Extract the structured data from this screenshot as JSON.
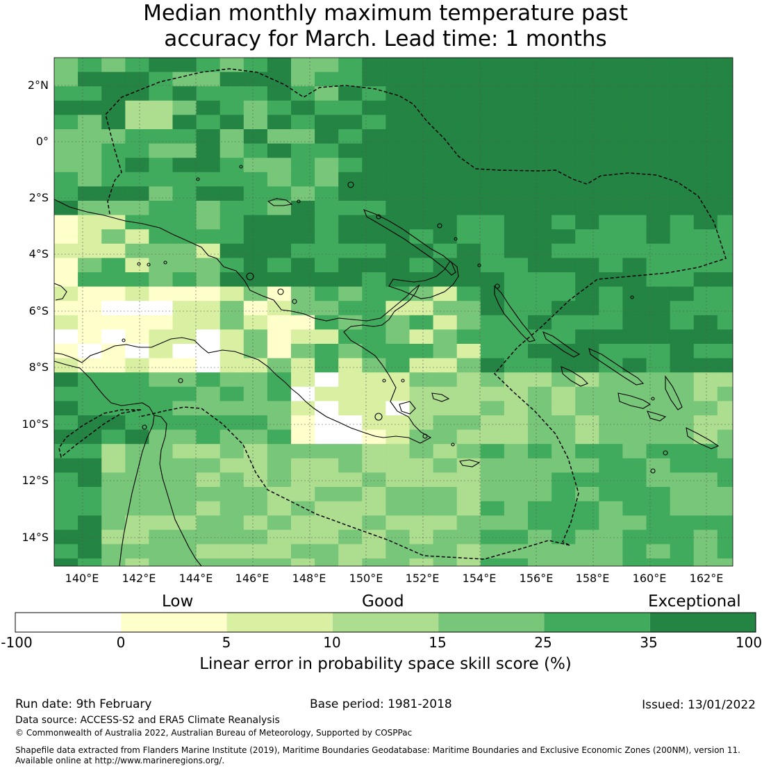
{
  "title": {
    "line1": "Median monthly maximum temperature past",
    "line2": "accuracy for March. Lead time: 1 months"
  },
  "map": {
    "lat_ticks": [
      "2°N",
      "0°",
      "2°S",
      "4°S",
      "6°S",
      "8°S",
      "10°S",
      "12°S",
      "14°S"
    ],
    "lon_ticks": [
      "140°E",
      "142°E",
      "144°E",
      "146°E",
      "148°E",
      "150°E",
      "152°E",
      "154°E",
      "156°E",
      "158°E",
      "160°E",
      "162°E"
    ],
    "extent": {
      "lon_min": 139,
      "lon_max": 162.8,
      "lat_min": -15,
      "lat_max": 2.9
    }
  },
  "colorbar": {
    "categories": [
      "Low",
      "Good",
      "Exceptional"
    ],
    "ticks": [
      "-100",
      "0",
      "5",
      "10",
      "15",
      "25",
      "35",
      "100"
    ],
    "colors": [
      "#ffffff",
      "#ffffcc",
      "#d9f0a3",
      "#addd8e",
      "#78c679",
      "#41ab5d",
      "#238443"
    ],
    "label": "Linear error in probability space skill score (%)"
  },
  "footer": {
    "run_date": "Run date: 9th February",
    "base_period": "Base period: 1981-2018",
    "issued": "Issued: 13/01/2022",
    "data_source": "Data source: ACCESS-S2 and ERA5 Climate Reanalysis",
    "copyright": "© Commonwealth of Australia 2022, Australian Bureau of Meteorology, Supported by COSPPac",
    "shapefile_line1": "Shapefile data extracted from Flanders Marine Institute (2019), Maritime Boundaries Geodatabase: Maritime Boundaries and Exclusive Economic Zones (200NM), version 11.",
    "shapefile_line2": "Available online at http://www.marineregions.org/."
  }
}
